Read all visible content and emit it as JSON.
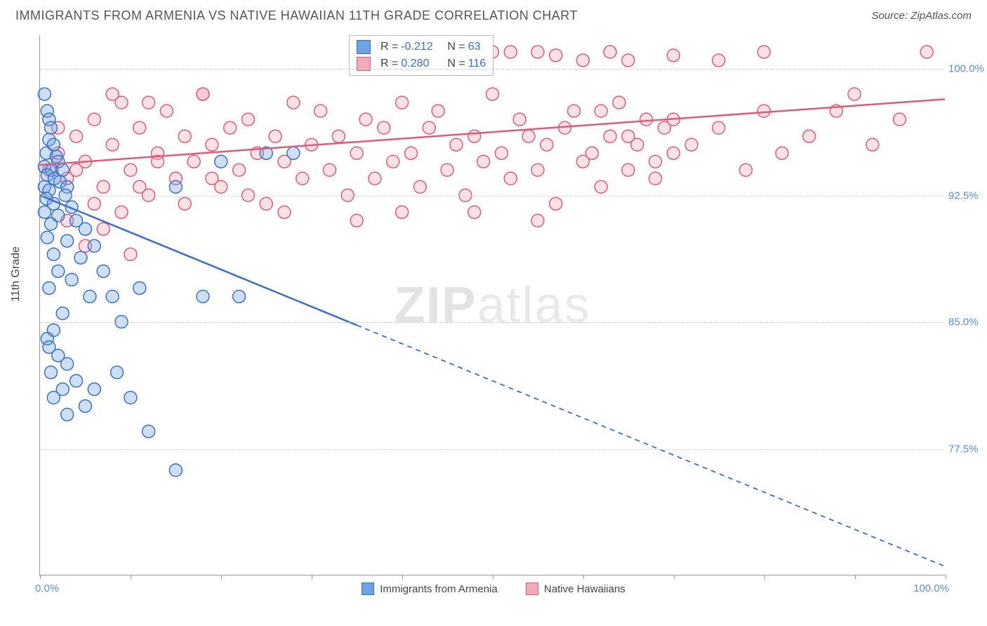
{
  "header": {
    "title": "IMMIGRANTS FROM ARMENIA VS NATIVE HAWAIIAN 11TH GRADE CORRELATION CHART",
    "source_label": "Source: ZipAtlas.com"
  },
  "ylabel": "11th Grade",
  "watermark": {
    "bold": "ZIP",
    "rest": "atlas"
  },
  "chart": {
    "type": "scatter",
    "background_color": "#ffffff",
    "grid_color": "#cccccc",
    "axis_color": "#999999",
    "xlim": [
      0,
      100
    ],
    "ylim": [
      70,
      102
    ],
    "ytick_values": [
      77.5,
      85.0,
      92.5,
      100.0
    ],
    "ytick_labels": [
      "77.5%",
      "85.0%",
      "92.5%",
      "100.0%"
    ],
    "xtick_positions": [
      0,
      10,
      20,
      30,
      40,
      50,
      60,
      70,
      80,
      90,
      100
    ],
    "xtick_labels": {
      "first": "0.0%",
      "last": "100.0%"
    },
    "marker_radius": 9,
    "marker_fill_opacity": 0.35,
    "marker_stroke_width": 1.5,
    "trend_line_width": 2.5
  },
  "series": [
    {
      "key": "armenia",
      "label": "Immigrants from Armenia",
      "color": "#6fa3e0",
      "stroke": "#3a6fc9",
      "R": "-0.212",
      "N": "63",
      "trend": {
        "x1": 0,
        "y1": 92.5,
        "x2": 100,
        "y2": 70.5,
        "solid_until_x": 35
      },
      "points": [
        [
          0.5,
          98.5
        ],
        [
          0.8,
          97.5
        ],
        [
          1.0,
          97.0
        ],
        [
          1.2,
          96.5
        ],
        [
          1.0,
          95.8
        ],
        [
          1.5,
          95.5
        ],
        [
          0.7,
          95.0
        ],
        [
          1.8,
          94.8
        ],
        [
          2.0,
          94.5
        ],
        [
          0.5,
          94.2
        ],
        [
          1.3,
          94.0
        ],
        [
          2.5,
          94.0
        ],
        [
          0.8,
          93.7
        ],
        [
          1.6,
          93.5
        ],
        [
          2.2,
          93.3
        ],
        [
          0.5,
          93.0
        ],
        [
          3.0,
          93.0
        ],
        [
          1.0,
          92.8
        ],
        [
          2.8,
          92.5
        ],
        [
          0.7,
          92.3
        ],
        [
          1.5,
          92.0
        ],
        [
          3.5,
          91.8
        ],
        [
          0.5,
          91.5
        ],
        [
          2.0,
          91.3
        ],
        [
          4.0,
          91.0
        ],
        [
          1.2,
          90.8
        ],
        [
          5.0,
          90.5
        ],
        [
          0.8,
          90.0
        ],
        [
          3.0,
          89.8
        ],
        [
          6.0,
          89.5
        ],
        [
          1.5,
          89.0
        ],
        [
          4.5,
          88.8
        ],
        [
          2.0,
          88.0
        ],
        [
          7.0,
          88.0
        ],
        [
          3.5,
          87.5
        ],
        [
          1.0,
          87.0
        ],
        [
          5.5,
          86.5
        ],
        [
          8.0,
          86.5
        ],
        [
          2.5,
          85.5
        ],
        [
          1.5,
          84.5
        ],
        [
          0.8,
          84.0
        ],
        [
          1.0,
          83.5
        ],
        [
          2.0,
          83.0
        ],
        [
          3.0,
          82.5
        ],
        [
          1.2,
          82.0
        ],
        [
          4.0,
          81.5
        ],
        [
          2.5,
          81.0
        ],
        [
          1.5,
          80.5
        ],
        [
          8.5,
          82.0
        ],
        [
          5.0,
          80.0
        ],
        [
          3.0,
          79.5
        ],
        [
          6.0,
          81.0
        ],
        [
          10.0,
          80.5
        ],
        [
          12.0,
          78.5
        ],
        [
          15.0,
          76.2
        ],
        [
          9.0,
          85.0
        ],
        [
          11.0,
          87.0
        ],
        [
          18.0,
          86.5
        ],
        [
          22.0,
          86.5
        ],
        [
          15.0,
          93.0
        ],
        [
          20.0,
          94.5
        ],
        [
          25.0,
          95.0
        ],
        [
          28.0,
          95.0
        ]
      ]
    },
    {
      "key": "hawaiian",
      "label": "Native Hawaiians",
      "color": "#f2a9b8",
      "stroke": "#e05a7a",
      "R": "0.280",
      "N": "116",
      "trend": {
        "x1": 0,
        "y1": 94.3,
        "x2": 100,
        "y2": 98.2,
        "solid_until_x": 100
      },
      "points": [
        [
          1,
          94.0
        ],
        [
          2,
          95.0
        ],
        [
          3,
          93.5
        ],
        [
          4,
          96.0
        ],
        [
          5,
          94.5
        ],
        [
          6,
          97.0
        ],
        [
          7,
          93.0
        ],
        [
          8,
          95.5
        ],
        [
          9,
          98.0
        ],
        [
          10,
          94.0
        ],
        [
          11,
          96.5
        ],
        [
          12,
          92.5
        ],
        [
          13,
          95.0
        ],
        [
          14,
          97.5
        ],
        [
          15,
          93.5
        ],
        [
          16,
          96.0
        ],
        [
          17,
          94.5
        ],
        [
          18,
          98.5
        ],
        [
          19,
          95.5
        ],
        [
          20,
          93.0
        ],
        [
          21,
          96.5
        ],
        [
          22,
          94.0
        ],
        [
          23,
          97.0
        ],
        [
          24,
          95.0
        ],
        [
          25,
          92.0
        ],
        [
          26,
          96.0
        ],
        [
          27,
          94.5
        ],
        [
          28,
          98.0
        ],
        [
          29,
          93.5
        ],
        [
          30,
          95.5
        ],
        [
          31,
          97.5
        ],
        [
          32,
          94.0
        ],
        [
          33,
          96.0
        ],
        [
          34,
          92.5
        ],
        [
          35,
          95.0
        ],
        [
          36,
          97.0
        ],
        [
          37,
          93.5
        ],
        [
          38,
          96.5
        ],
        [
          39,
          94.5
        ],
        [
          40,
          98.0
        ],
        [
          41,
          95.0
        ],
        [
          42,
          93.0
        ],
        [
          43,
          96.5
        ],
        [
          44,
          97.5
        ],
        [
          45,
          94.0
        ],
        [
          46,
          95.5
        ],
        [
          47,
          92.5
        ],
        [
          48,
          96.0
        ],
        [
          49,
          94.5
        ],
        [
          50,
          98.5
        ],
        [
          51,
          95.0
        ],
        [
          52,
          93.5
        ],
        [
          53,
          97.0
        ],
        [
          54,
          96.0
        ],
        [
          55,
          94.0
        ],
        [
          56,
          95.5
        ],
        [
          57,
          92.0
        ],
        [
          58,
          96.5
        ],
        [
          59,
          97.5
        ],
        [
          60,
          94.5
        ],
        [
          61,
          95.0
        ],
        [
          62,
          93.0
        ],
        [
          63,
          96.0
        ],
        [
          64,
          98.0
        ],
        [
          65,
          94.0
        ],
        [
          66,
          95.5
        ],
        [
          67,
          97.0
        ],
        [
          68,
          93.5
        ],
        [
          69,
          96.5
        ],
        [
          70,
          95.0
        ],
        [
          50,
          101.0
        ],
        [
          52,
          101.0
        ],
        [
          55,
          101.0
        ],
        [
          57,
          100.8
        ],
        [
          60,
          100.5
        ],
        [
          63,
          101.0
        ],
        [
          65,
          100.5
        ],
        [
          70,
          100.8
        ],
        [
          75,
          100.5
        ],
        [
          62,
          97.5
        ],
        [
          65,
          96.0
        ],
        [
          68,
          94.5
        ],
        [
          70,
          97.0
        ],
        [
          72,
          95.5
        ],
        [
          75,
          96.5
        ],
        [
          78,
          94.0
        ],
        [
          80,
          97.5
        ],
        [
          80,
          101.0
        ],
        [
          82,
          95.0
        ],
        [
          85,
          96.0
        ],
        [
          88,
          97.5
        ],
        [
          90,
          98.5
        ],
        [
          92,
          95.5
        ],
        [
          95,
          97.0
        ],
        [
          98,
          101.0
        ],
        [
          48,
          91.5
        ],
        [
          55,
          91.0
        ],
        [
          35,
          91.0
        ],
        [
          40,
          91.5
        ],
        [
          8,
          98.5
        ],
        [
          12,
          98.0
        ],
        [
          18,
          98.5
        ],
        [
          3,
          91.0
        ],
        [
          5,
          89.5
        ],
        [
          7,
          90.5
        ],
        [
          10,
          89.0
        ],
        [
          2,
          96.5
        ],
        [
          4,
          94.0
        ],
        [
          6,
          92.0
        ],
        [
          9,
          91.5
        ],
        [
          11,
          93.0
        ],
        [
          13,
          94.5
        ],
        [
          16,
          92.0
        ],
        [
          19,
          93.5
        ],
        [
          23,
          92.5
        ],
        [
          27,
          91.5
        ]
      ]
    }
  ]
}
